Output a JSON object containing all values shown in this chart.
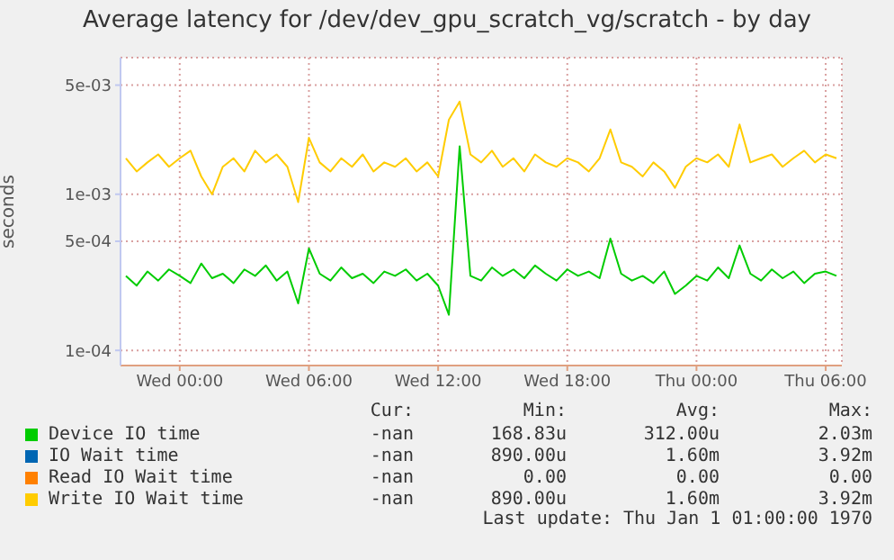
{
  "chart_data": {
    "type": "line",
    "title": "Average latency for /dev/dev_gpu_scratch_vg/scratch - by day",
    "ylabel": "seconds",
    "categories": [
      null,
      null,
      null,
      null,
      null,
      "Wed 00:00",
      null,
      null,
      null,
      null,
      null,
      null,
      null,
      null,
      null,
      null,
      null,
      "Wed 06:00",
      null,
      null,
      null,
      null,
      null,
      null,
      null,
      null,
      null,
      null,
      null,
      "Wed 12:00",
      null,
      null,
      null,
      null,
      null,
      null,
      null,
      null,
      null,
      null,
      null,
      "Wed 18:00",
      null,
      null,
      null,
      null,
      null,
      null,
      null,
      null,
      null,
      null,
      null,
      "Thu 00:00",
      null,
      null,
      null,
      null,
      null,
      null,
      null,
      null,
      null,
      null,
      null,
      "Thu 06:00",
      null
    ],
    "series": [
      {
        "name": "Device IO time",
        "color": "#00cc00",
        "values": [
          0.0003,
          0.00026,
          0.00032,
          0.00028,
          0.00033,
          0.0003,
          0.00027,
          0.00036,
          0.00029,
          0.00031,
          0.00027,
          0.00033,
          0.0003,
          0.00035,
          0.00028,
          0.00032,
          0.0002,
          0.00045,
          0.00031,
          0.00028,
          0.00034,
          0.00029,
          0.00031,
          0.00027,
          0.00032,
          0.0003,
          0.00033,
          0.00028,
          0.00031,
          0.00026,
          0.000169,
          0.00203,
          0.0003,
          0.00028,
          0.00034,
          0.0003,
          0.00033,
          0.00029,
          0.00035,
          0.00031,
          0.00028,
          0.00033,
          0.0003,
          0.00032,
          0.00029,
          0.00052,
          0.00031,
          0.00028,
          0.0003,
          0.00027,
          0.00032,
          0.00023,
          0.00026,
          0.0003,
          0.00028,
          0.00034,
          0.00029,
          0.00047,
          0.00031,
          0.00028,
          0.00033,
          0.00029,
          0.00032,
          0.00027,
          0.00031,
          0.00032,
          0.0003
        ]
      },
      {
        "name": "IO Wait time",
        "color": "#0066b3",
        "values": [
          null,
          null,
          null,
          null,
          null,
          null,
          null,
          null,
          null,
          null,
          null,
          null,
          null,
          null,
          null,
          null,
          null,
          null,
          null,
          null,
          null,
          null,
          null,
          null,
          null,
          null,
          null,
          null,
          null,
          null,
          null,
          null,
          null,
          null,
          null,
          null,
          null,
          null,
          null,
          null,
          null,
          null,
          null,
          null,
          null,
          null,
          null,
          null,
          null,
          null,
          null,
          null,
          null,
          null,
          null,
          null,
          null,
          null,
          null,
          null,
          null,
          null,
          null,
          null,
          null,
          null,
          null
        ]
      },
      {
        "name": "Read IO Wait time",
        "color": "#ff8000",
        "values": [
          null,
          null,
          null,
          null,
          null,
          null,
          null,
          null,
          null,
          null,
          null,
          null,
          null,
          null,
          null,
          null,
          null,
          null,
          null,
          null,
          null,
          null,
          null,
          null,
          null,
          null,
          null,
          null,
          null,
          null,
          null,
          null,
          null,
          null,
          null,
          null,
          null,
          null,
          null,
          null,
          null,
          null,
          null,
          null,
          null,
          null,
          null,
          null,
          null,
          null,
          null,
          null,
          null,
          null,
          null,
          null,
          null,
          null,
          null,
          null,
          null,
          null,
          null,
          null,
          null,
          null,
          null
        ]
      },
      {
        "name": "Write IO Wait time",
        "color": "#ffcc00",
        "values": [
          0.0017,
          0.0014,
          0.0016,
          0.0018,
          0.0015,
          0.0017,
          0.0019,
          0.0013,
          0.001,
          0.0015,
          0.0017,
          0.0014,
          0.0019,
          0.0016,
          0.0018,
          0.0015,
          0.00089,
          0.0023,
          0.0016,
          0.0014,
          0.0017,
          0.0015,
          0.0018,
          0.0014,
          0.0016,
          0.0015,
          0.0017,
          0.0014,
          0.0016,
          0.0013,
          0.003,
          0.00392,
          0.0018,
          0.0016,
          0.0019,
          0.0015,
          0.0017,
          0.0014,
          0.0018,
          0.0016,
          0.0015,
          0.0017,
          0.0016,
          0.0014,
          0.0017,
          0.0026,
          0.0016,
          0.0015,
          0.0013,
          0.0016,
          0.0014,
          0.0011,
          0.0015,
          0.0017,
          0.0016,
          0.0018,
          0.0015,
          0.0028,
          0.0016,
          0.0017,
          0.0018,
          0.0015,
          0.0017,
          0.0019,
          0.0016,
          0.0018,
          0.0017
        ]
      }
    ],
    "log": "y",
    "ylim": [
      8e-05,
      0.0075
    ],
    "yticks": [
      {
        "value": 0.0001,
        "label": "1e-04"
      },
      {
        "value": 0.0005,
        "label": "5e-04"
      },
      {
        "value": 0.001,
        "label": "1e-03"
      },
      {
        "value": 0.005,
        "label": "5e-03"
      }
    ],
    "grid": true,
    "legend": "bottom",
    "annotations": [
      "Cur:",
      "Min:",
      "Avg:",
      "Max:",
      "-nan",
      "168.83u",
      "312.00u",
      "2.03m",
      "-nan",
      "890.00u",
      "1.60m",
      "3.92m",
      "-nan",
      "0.00",
      "0.00",
      "0.00",
      "-nan",
      "890.00u",
      "1.60m",
      "3.92m",
      "Last update: Thu Jan  1 01:00:00 1970"
    ]
  }
}
